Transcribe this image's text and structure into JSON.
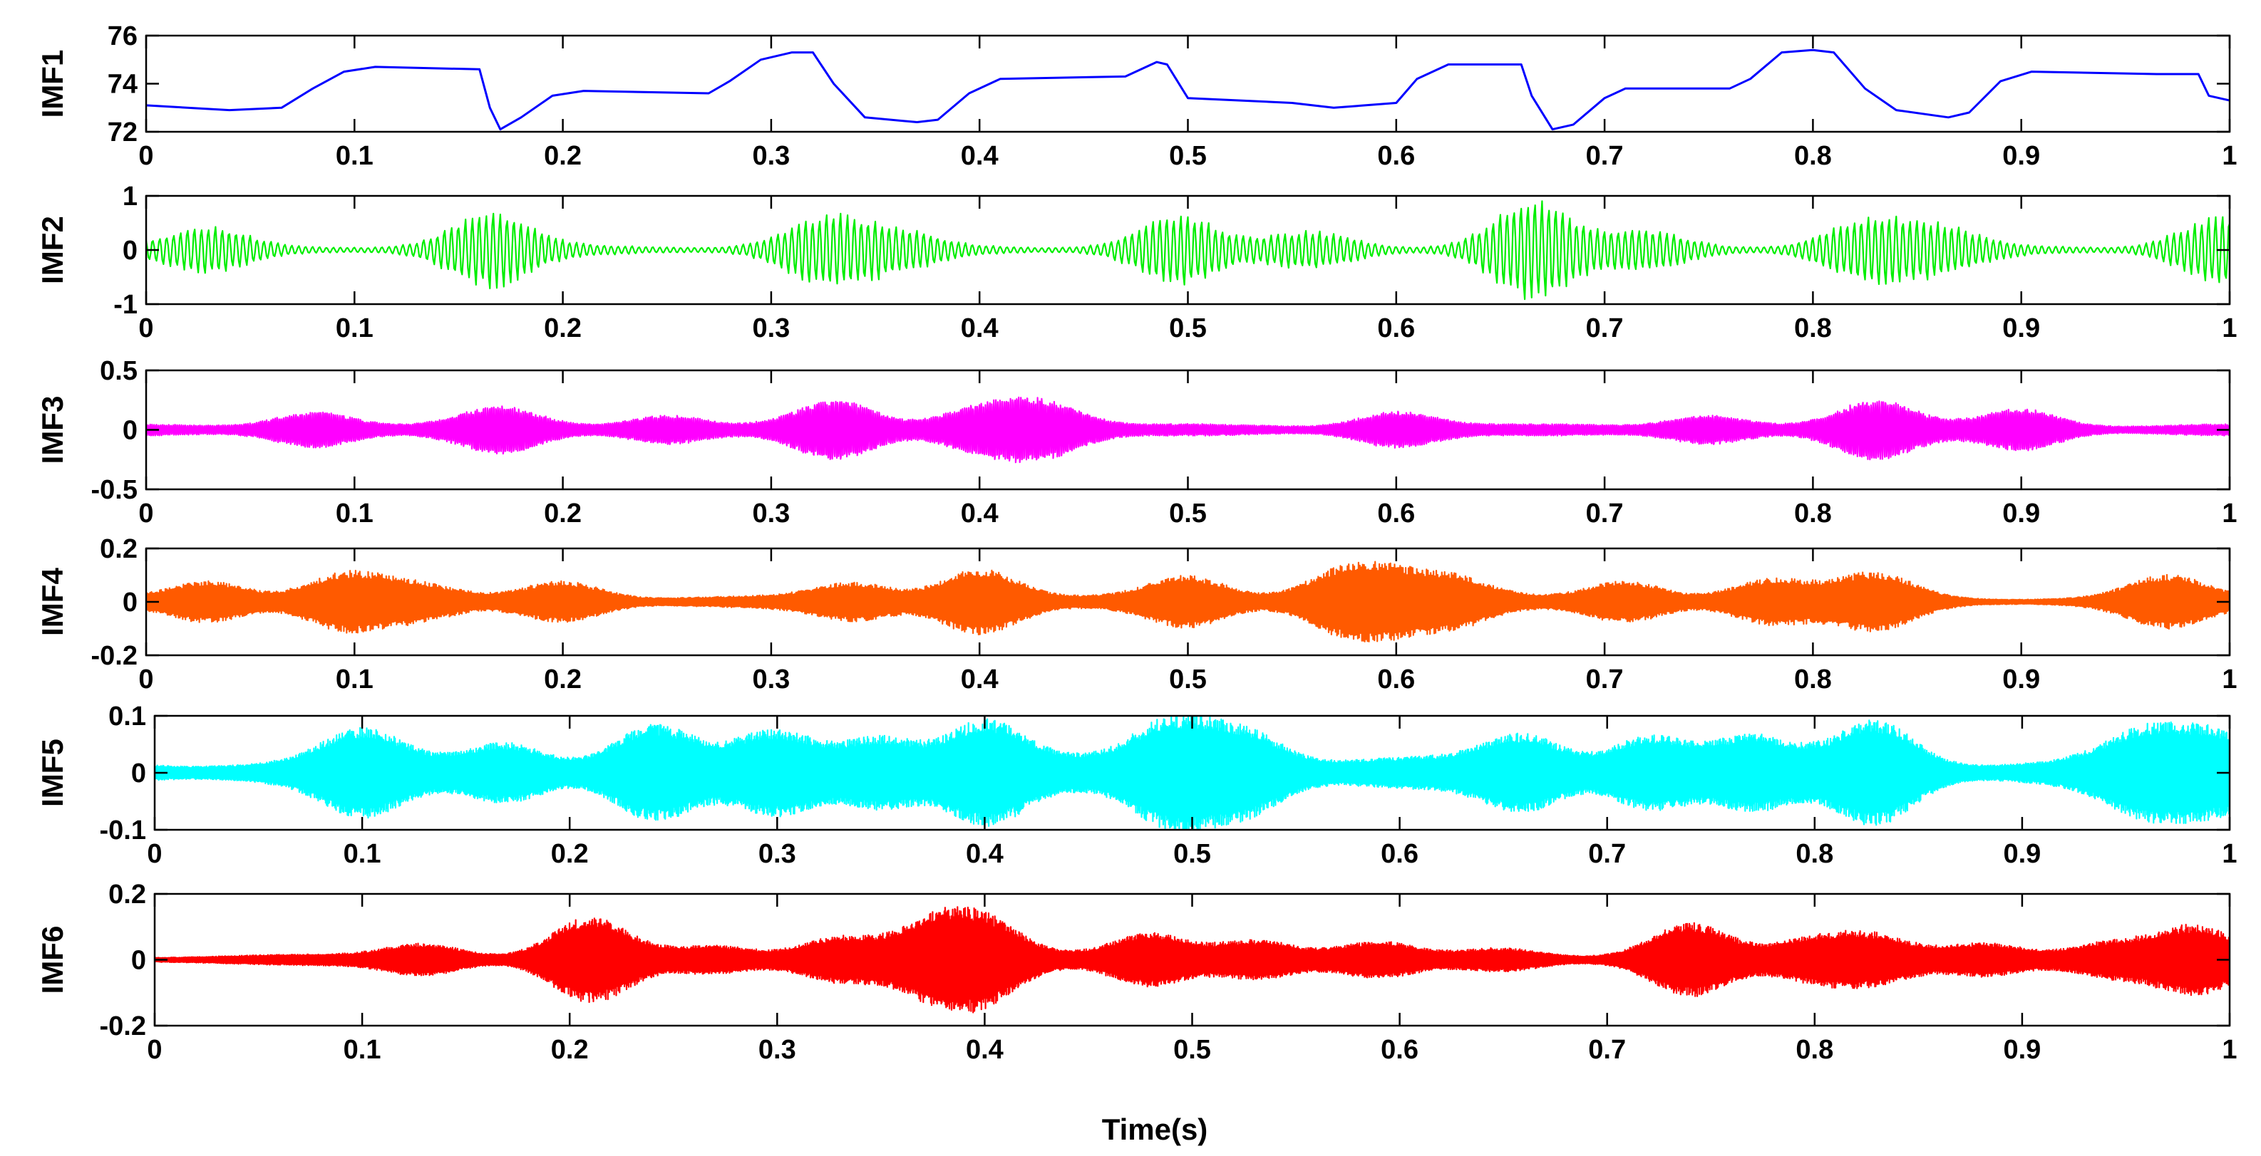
{
  "chart_data": {
    "type": "line",
    "xlabel": "Time(s)",
    "xlim": [
      0,
      1
    ],
    "x_ticks": [
      0,
      0.1,
      0.2,
      0.3,
      0.4,
      0.5,
      0.6,
      0.7,
      0.8,
      0.9,
      1
    ],
    "x_tick_labels": [
      "0",
      "0.1",
      "0.2",
      "0.3",
      "0.4",
      "0.5",
      "0.6",
      "0.7",
      "0.8",
      "0.9",
      "1"
    ],
    "grid": false,
    "panels": [
      {
        "name": "IMF1",
        "ylabel": "IMF1",
        "color": "#0000ff",
        "ylim": [
          72,
          76
        ],
        "y_ticks": [
          72,
          74,
          76
        ],
        "y_tick_labels": [
          "72",
          "74",
          "76"
        ],
        "signal": "slow",
        "points": [
          [
            0,
            73.1
          ],
          [
            0.04,
            72.9
          ],
          [
            0.065,
            73.0
          ],
          [
            0.08,
            73.8
          ],
          [
            0.095,
            74.5
          ],
          [
            0.11,
            74.7
          ],
          [
            0.16,
            74.6
          ],
          [
            0.165,
            73.0
          ],
          [
            0.17,
            72.1
          ],
          [
            0.18,
            72.6
          ],
          [
            0.195,
            73.5
          ],
          [
            0.21,
            73.7
          ],
          [
            0.27,
            73.6
          ],
          [
            0.28,
            74.1
          ],
          [
            0.295,
            75.0
          ],
          [
            0.31,
            75.3
          ],
          [
            0.32,
            75.3
          ],
          [
            0.33,
            74.0
          ],
          [
            0.345,
            72.6
          ],
          [
            0.37,
            72.4
          ],
          [
            0.38,
            72.5
          ],
          [
            0.395,
            73.6
          ],
          [
            0.41,
            74.2
          ],
          [
            0.47,
            74.3
          ],
          [
            0.485,
            74.9
          ],
          [
            0.49,
            74.8
          ],
          [
            0.5,
            73.4
          ],
          [
            0.55,
            73.2
          ],
          [
            0.57,
            73.0
          ],
          [
            0.6,
            73.2
          ],
          [
            0.61,
            74.2
          ],
          [
            0.625,
            74.8
          ],
          [
            0.66,
            74.8
          ],
          [
            0.665,
            73.5
          ],
          [
            0.675,
            72.1
          ],
          [
            0.685,
            72.3
          ],
          [
            0.7,
            73.4
          ],
          [
            0.71,
            73.8
          ],
          [
            0.76,
            73.8
          ],
          [
            0.77,
            74.2
          ],
          [
            0.785,
            75.3
          ],
          [
            0.8,
            75.4
          ],
          [
            0.81,
            75.3
          ],
          [
            0.825,
            73.8
          ],
          [
            0.84,
            72.9
          ],
          [
            0.865,
            72.6
          ],
          [
            0.875,
            72.8
          ],
          [
            0.89,
            74.1
          ],
          [
            0.905,
            74.5
          ],
          [
            0.965,
            74.4
          ],
          [
            0.975,
            74.4
          ],
          [
            0.985,
            74.4
          ],
          [
            0.99,
            73.5
          ],
          [
            1,
            73.3
          ]
        ]
      },
      {
        "name": "IMF2",
        "ylabel": "IMF2",
        "color": "#00ee00",
        "ylim": [
          -1,
          1
        ],
        "y_ticks": [
          -1,
          0,
          1
        ],
        "y_tick_labels": [
          "-1",
          "0",
          "1"
        ],
        "signal": "oscillatory",
        "cycles": 300,
        "base_amplitude": 0.1,
        "bursts": [
          [
            0.03,
            0.4
          ],
          [
            0.165,
            0.65
          ],
          [
            0.325,
            0.6
          ],
          [
            0.36,
            0.35
          ],
          [
            0.495,
            0.6
          ],
          [
            0.56,
            0.35
          ],
          [
            0.665,
            0.85
          ],
          [
            0.72,
            0.35
          ],
          [
            0.825,
            0.55
          ],
          [
            0.86,
            0.4
          ],
          [
            0.995,
            0.6
          ]
        ]
      },
      {
        "name": "IMF3",
        "ylabel": "IMF3",
        "color": "#ff00ff",
        "ylim": [
          -0.5,
          0.5
        ],
        "y_ticks": [
          -0.5,
          0,
          0.5
        ],
        "y_tick_labels": [
          "-0.5",
          "0",
          "0.5"
        ],
        "signal": "oscillatory",
        "cycles": 1000,
        "base_amplitude": 0.05,
        "bursts": [
          [
            0.08,
            0.18
          ],
          [
            0.17,
            0.2
          ],
          [
            0.25,
            0.15
          ],
          [
            0.33,
            0.25
          ],
          [
            0.4,
            0.2
          ],
          [
            0.43,
            0.25
          ],
          [
            0.6,
            0.18
          ],
          [
            0.75,
            0.15
          ],
          [
            0.83,
            0.25
          ],
          [
            0.9,
            0.2
          ]
        ]
      },
      {
        "name": "IMF4",
        "ylabel": "IMF4",
        "color": "#ff5a00",
        "ylim": [
          -0.2,
          0.2
        ],
        "y_ticks": [
          -0.2,
          0,
          0.2
        ],
        "y_tick_labels": [
          "-0.2",
          "0",
          "0.2"
        ],
        "signal": "oscillatory",
        "cycles": 1500,
        "base_amplitude": 0.02,
        "bursts": [
          [
            0.03,
            0.08
          ],
          [
            0.095,
            0.1
          ],
          [
            0.13,
            0.06
          ],
          [
            0.2,
            0.08
          ],
          [
            0.34,
            0.07
          ],
          [
            0.4,
            0.12
          ],
          [
            0.5,
            0.09
          ],
          [
            0.57,
            0.08
          ],
          [
            0.59,
            0.1
          ],
          [
            0.625,
            0.09
          ],
          [
            0.71,
            0.08
          ],
          [
            0.78,
            0.08
          ],
          [
            0.83,
            0.1
          ],
          [
            0.97,
            0.09
          ]
        ]
      },
      {
        "name": "IMF5",
        "ylabel": "IMF5",
        "color": "#00ffff",
        "ylim": [
          -0.1,
          0.1
        ],
        "y_ticks": [
          -0.1,
          0,
          0.1
        ],
        "y_tick_labels": [
          "-0.1",
          "0",
          "0.1"
        ],
        "signal": "oscillatory",
        "cycles": 2200,
        "base_amplitude": 0.025,
        "bursts": [
          [
            0.1,
            0.07
          ],
          [
            0.17,
            0.06
          ],
          [
            0.24,
            0.08
          ],
          [
            0.3,
            0.07
          ],
          [
            0.35,
            0.07
          ],
          [
            0.4,
            0.09
          ],
          [
            0.49,
            0.09
          ],
          [
            0.525,
            0.08
          ],
          [
            0.66,
            0.07
          ],
          [
            0.72,
            0.07
          ],
          [
            0.77,
            0.06
          ],
          [
            0.83,
            0.09
          ],
          [
            0.96,
            0.07
          ],
          [
            0.995,
            0.07
          ]
        ]
      },
      {
        "name": "IMF6",
        "ylabel": "IMF6",
        "color": "#ff0000",
        "ylim": [
          -0.2,
          0.2
        ],
        "y_ticks": [
          -0.2,
          0,
          0.2
        ],
        "y_tick_labels": [
          "-0.2",
          "0",
          "0.2"
        ],
        "signal": "oscillatory",
        "cycles": 3000,
        "base_amplitude": 0.015,
        "bursts": [
          [
            0.13,
            0.05
          ],
          [
            0.21,
            0.12
          ],
          [
            0.27,
            0.04
          ],
          [
            0.33,
            0.07
          ],
          [
            0.375,
            0.1
          ],
          [
            0.4,
            0.1
          ],
          [
            0.48,
            0.08
          ],
          [
            0.53,
            0.06
          ],
          [
            0.59,
            0.05
          ],
          [
            0.65,
            0.04
          ],
          [
            0.74,
            0.1
          ],
          [
            0.8,
            0.06
          ],
          [
            0.83,
            0.07
          ],
          [
            0.88,
            0.05
          ],
          [
            0.945,
            0.05
          ],
          [
            0.985,
            0.1
          ]
        ]
      }
    ]
  }
}
